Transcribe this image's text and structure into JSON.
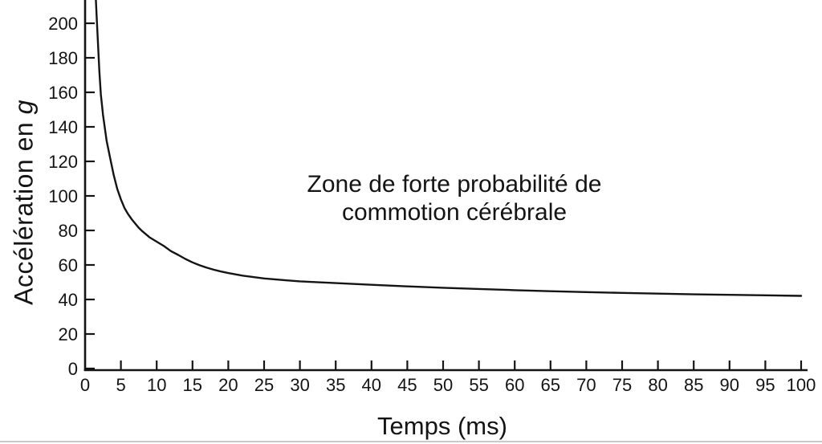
{
  "page": {
    "background": "#ffffff",
    "ink_color": "#141414",
    "scan_artifact_color": "#bdbdbd"
  },
  "chart_data": {
    "type": "line",
    "title": "",
    "xlabel": "Temps (ms)",
    "ylabel": "Accélération en g",
    "ylabel_parts": {
      "text": "Accélération en ",
      "unit": "g"
    },
    "annotation": "Zone de forte probabilité de\ncommotion cérébrale",
    "xlim": [
      0,
      100
    ],
    "ylim": [
      0,
      215
    ],
    "x_ticks": [
      0,
      5,
      10,
      15,
      20,
      25,
      30,
      35,
      40,
      45,
      50,
      55,
      60,
      65,
      70,
      75,
      80,
      85,
      90,
      95,
      100
    ],
    "y_ticks": [
      0,
      20,
      40,
      60,
      80,
      100,
      120,
      140,
      160,
      180,
      200
    ],
    "grid": false,
    "legend": "none",
    "series": [
      {
        "name": "curve",
        "points": [
          [
            1.5,
            214
          ],
          [
            1.6,
            205
          ],
          [
            1.8,
            188
          ],
          [
            2,
            172
          ],
          [
            2.2,
            159
          ],
          [
            2.5,
            147
          ],
          [
            2.8,
            138
          ],
          [
            3,
            132
          ],
          [
            3.5,
            122
          ],
          [
            4,
            112
          ],
          [
            4.5,
            104
          ],
          [
            5,
            98
          ],
          [
            5.5,
            93
          ],
          [
            6,
            89.5
          ],
          [
            6.5,
            86.5
          ],
          [
            7,
            84
          ],
          [
            7.5,
            81.5
          ],
          [
            8,
            79.5
          ],
          [
            9,
            76
          ],
          [
            10,
            73.5
          ],
          [
            11,
            71
          ],
          [
            12,
            68
          ],
          [
            13,
            65.8
          ],
          [
            14,
            63.5
          ],
          [
            15,
            61.5
          ],
          [
            16,
            59.8
          ],
          [
            17,
            58.4
          ],
          [
            18,
            57.2
          ],
          [
            19,
            56.2
          ],
          [
            20,
            55.3
          ],
          [
            22,
            53.8
          ],
          [
            25,
            52.2
          ],
          [
            28,
            51.1
          ],
          [
            30,
            50.5
          ],
          [
            35,
            49.5
          ],
          [
            40,
            48.5
          ],
          [
            45,
            47.6
          ],
          [
            50,
            46.8
          ],
          [
            55,
            46.1
          ],
          [
            60,
            45.4
          ],
          [
            65,
            44.8
          ],
          [
            70,
            44.3
          ],
          [
            75,
            43.8
          ],
          [
            80,
            43.4
          ],
          [
            85,
            43
          ],
          [
            90,
            42.7
          ],
          [
            95,
            42.4
          ],
          [
            100,
            42.1
          ]
        ]
      }
    ]
  }
}
